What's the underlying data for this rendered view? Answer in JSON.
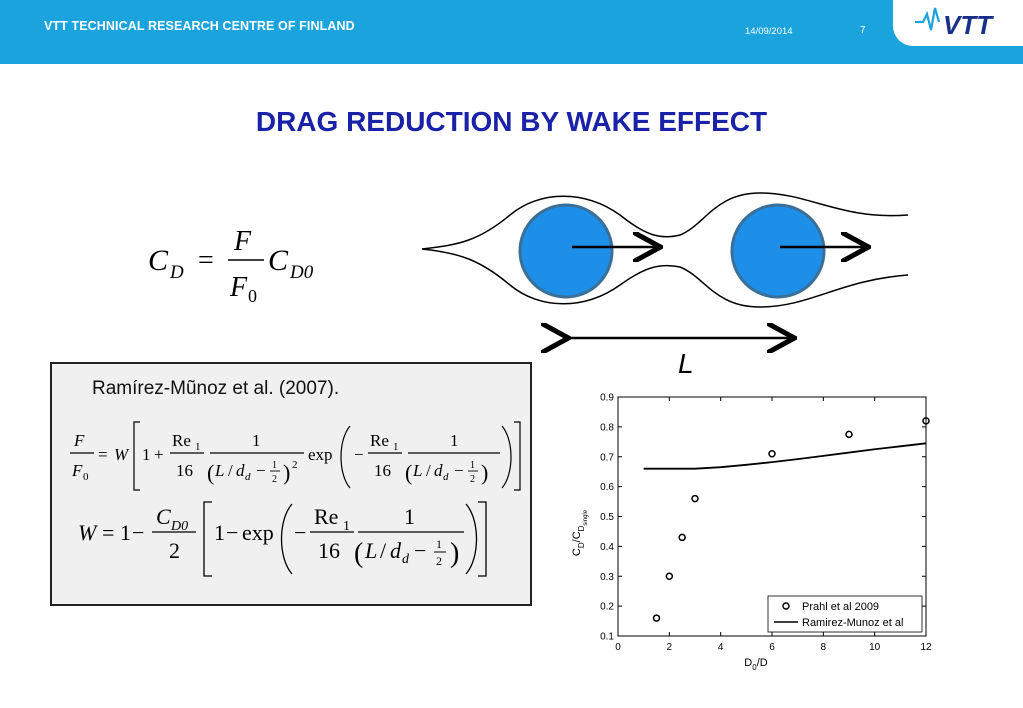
{
  "header": {
    "org": "VTT TECHNICAL RESEARCH CENTRE OF FINLAND",
    "date": "14/09/2014",
    "page": "7",
    "logo_text": "VTT",
    "brand_color": "#1aa3dc",
    "logo_color": "#1a2f8a"
  },
  "slide": {
    "title": "DRAG REDUCTION BY WAKE EFFECT",
    "title_color": "#1a23a8"
  },
  "equation_main": {
    "lhs": "C",
    "lhs_sub": "D",
    "eq": "=",
    "num": "F",
    "den": "F",
    "den_sub": "0",
    "rhs": "C",
    "rhs_sub": "D0"
  },
  "figure": {
    "distance_label": "L",
    "sphere_color": "#1e8fe8"
  },
  "reference_box": {
    "citation": "Ramírez-Mũnoz et al. (2007).",
    "eq1": {
      "F": "F",
      "F0": "F",
      "F0_sub": "0",
      "eq": "=",
      "W": "W",
      "one": "1",
      "plus": "+",
      "Re": "Re",
      "Re_sub": "1",
      "sixteen": "16",
      "L": "L",
      "slash": "/",
      "d": "d",
      "d_sub": "d",
      "minus": "−",
      "half_num": "1",
      "half_den": "2",
      "sq": "2",
      "exp": "exp"
    },
    "eq2": {
      "W": "W",
      "eq": "=",
      "one": "1",
      "minus": "−",
      "C": "C",
      "C_sub": "D0",
      "two": "2",
      "exp": "exp",
      "Re": "Re",
      "Re_sub": "1",
      "sixteen": "16",
      "L": "L",
      "slash": "/",
      "d": "d",
      "d_sub": "d",
      "half_num": "1",
      "half_den": "2"
    }
  },
  "chart_data": {
    "type": "scatter",
    "xlabel": "D",
    "xlabel_sub": "0",
    "xlabel_suffix": "/D",
    "ylabel": "C",
    "ylabel_sub1": "D",
    "ylabel_mid": "/C",
    "ylabel_sub2": "D",
    "ylabel_subsub": "single",
    "xlim": [
      0,
      12
    ],
    "ylim": [
      0.1,
      0.9
    ],
    "x_ticks": [
      "0",
      "2",
      "4",
      "6",
      "8",
      "10",
      "12"
    ],
    "y_ticks": [
      "0.1",
      "0.2",
      "0.3",
      "0.4",
      "0.5",
      "0.6",
      "0.7",
      "0.8",
      "0.9"
    ],
    "legend_position": "bottom-right",
    "grid": false,
    "series": [
      {
        "name": "Prahl et al 2009",
        "style": "markers",
        "x": [
          1.5,
          2.0,
          2.5,
          3.0,
          6.0,
          9.0,
          12.0
        ],
        "y": [
          0.16,
          0.3,
          0.43,
          0.56,
          0.71,
          0.775,
          0.82
        ]
      },
      {
        "name": "Ramirez-Munoz et al",
        "style": "line",
        "x": [
          1.0,
          2.0,
          3.0,
          4.0,
          5.0,
          6.0,
          7.0,
          8.0,
          9.0,
          10.0,
          11.0,
          12.0
        ],
        "y": [
          0.66,
          0.66,
          0.66,
          0.665,
          0.673,
          0.682,
          0.692,
          0.703,
          0.714,
          0.725,
          0.735,
          0.745
        ]
      }
    ]
  }
}
